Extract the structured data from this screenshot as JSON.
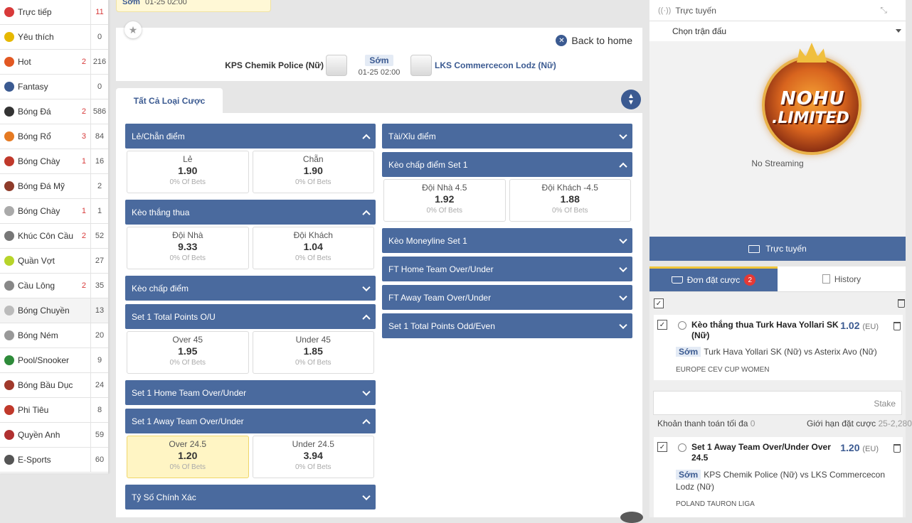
{
  "sidebar": {
    "items": [
      {
        "label": "Trực tiếp",
        "live": "",
        "count": "11",
        "count_red": true,
        "color": "#d83a3a"
      },
      {
        "label": "Yêu thích",
        "live": "",
        "count": "0",
        "count_red": false,
        "color": "#e6b800"
      },
      {
        "label": "Hot",
        "live": "2",
        "count": "216",
        "count_red": false,
        "color": "#e25822"
      },
      {
        "label": "Fantasy",
        "live": "",
        "count": "0",
        "count_red": false,
        "color": "#3b5a91"
      },
      {
        "label": "Bóng Đá",
        "live": "2",
        "count": "586",
        "count_red": false,
        "color": "#333333"
      },
      {
        "label": "Bóng Rổ",
        "live": "3",
        "count": "84",
        "count_red": false,
        "color": "#e57a22"
      },
      {
        "label": "Bóng Chày",
        "live": "1",
        "count": "16",
        "count_red": false,
        "color": "#c0392b"
      },
      {
        "label": "Bóng Đá Mỹ",
        "live": "",
        "count": "2",
        "count_red": false,
        "color": "#8e3b2a"
      },
      {
        "label": "Bóng Chày",
        "live": "1",
        "count": "1",
        "count_red": false,
        "color": "#aaaaaa"
      },
      {
        "label": "Khúc Côn Cầu",
        "live": "2",
        "count": "52",
        "count_red": false,
        "color": "#777777"
      },
      {
        "label": "Quần Vợt",
        "live": "",
        "count": "27",
        "count_red": false,
        "color": "#b7d42a"
      },
      {
        "label": "Cầu Lông",
        "live": "2",
        "count": "35",
        "count_red": false,
        "color": "#888888"
      },
      {
        "label": "Bóng Chuyền",
        "live": "",
        "count": "13",
        "count_red": false,
        "color": "#bbbbbb"
      },
      {
        "label": "Bóng Ném",
        "live": "",
        "count": "20",
        "count_red": false,
        "color": "#999999"
      },
      {
        "label": "Pool/Snooker",
        "live": "",
        "count": "9",
        "count_red": false,
        "color": "#2e8b3a"
      },
      {
        "label": "Bóng Bầu Dục",
        "live": "",
        "count": "24",
        "count_red": false,
        "color": "#a0392b"
      },
      {
        "label": "Phi Tiêu",
        "live": "",
        "count": "8",
        "count_red": false,
        "color": "#c0392b"
      },
      {
        "label": "Quyền Anh",
        "live": "",
        "count": "59",
        "count_red": false,
        "color": "#b03030"
      },
      {
        "label": "E-Sports",
        "live": "",
        "count": "60",
        "count_red": false,
        "color": "#555555"
      }
    ],
    "active_index": 12
  },
  "top_strip": {
    "status": "Sớm",
    "time": "01-25 02:00"
  },
  "match": {
    "home": "KPS Chemik Police (Nữ)",
    "away": "LKS Commercecon Lodz (Nữ)",
    "status": "Sớm",
    "time": "01-25 02:00",
    "back_label": "Back to home"
  },
  "bet_tab": "Tất Cả Loại Cược",
  "markets_left": [
    {
      "title": "Lẻ/Chẵn điểm",
      "open": true,
      "odds": [
        {
          "name": "Lẻ",
          "value": "1.90",
          "pct": "0% Of Bets",
          "selected": false
        },
        {
          "name": "Chẵn",
          "value": "1.90",
          "pct": "0% Of Bets",
          "selected": false
        }
      ]
    },
    {
      "title": "Kèo thắng thua",
      "open": true,
      "odds": [
        {
          "name": "Đội Nhà",
          "value": "9.33",
          "pct": "0% Of Bets",
          "selected": false
        },
        {
          "name": "Đội Khách",
          "value": "1.04",
          "pct": "0% Of Bets",
          "selected": false
        }
      ]
    },
    {
      "title": "Kèo chấp điểm",
      "open": false,
      "odds": []
    },
    {
      "title": "Set 1 Total Points O/U",
      "open": true,
      "odds": [
        {
          "name": "Over 45",
          "value": "1.95",
          "pct": "0% Of Bets",
          "selected": false
        },
        {
          "name": "Under 45",
          "value": "1.85",
          "pct": "0% Of Bets",
          "selected": false
        }
      ]
    },
    {
      "title": "Set 1 Home Team Over/Under",
      "open": false,
      "odds": []
    },
    {
      "title": "Set 1 Away Team Over/Under",
      "open": true,
      "odds": [
        {
          "name": "Over 24.5",
          "value": "1.20",
          "pct": "0% Of Bets",
          "selected": true
        },
        {
          "name": "Under 24.5",
          "value": "3.94",
          "pct": "0% Of Bets",
          "selected": false
        }
      ]
    },
    {
      "title": "Tỷ Số Chính Xác",
      "open": false,
      "odds": []
    }
  ],
  "markets_right": [
    {
      "title": "Tài/Xỉu điểm",
      "open": false,
      "odds": []
    },
    {
      "title": "Kèo chấp điểm Set 1",
      "open": true,
      "odds": [
        {
          "name": "Đội Nhà 4.5",
          "value": "1.92",
          "pct": "0% Of Bets",
          "selected": false
        },
        {
          "name": "Đội Khách -4.5",
          "value": "1.88",
          "pct": "0% Of Bets",
          "selected": false
        }
      ]
    },
    {
      "title": "Kèo Moneyline Set 1",
      "open": false,
      "odds": []
    },
    {
      "title": "FT Home Team Over/Under",
      "open": false,
      "odds": []
    },
    {
      "title": "FT Away Team Over/Under",
      "open": false,
      "odds": []
    },
    {
      "title": "Set 1 Total Points Odd/Even",
      "open": false,
      "odds": []
    }
  ],
  "stream": {
    "header": "Trực tuyến",
    "match_select": "Chọn trận đấu",
    "logo_line1": "NOHU",
    "logo_line2": ".LIMITED",
    "no_streaming": "No Streaming",
    "live_button": "Trực tuyến"
  },
  "slip": {
    "tab_bets": "Đơn đặt cược",
    "bets_count": "2",
    "tab_history": "History",
    "stake_placeholder": "Stake",
    "max_payout_label": "Khoản thanh toán tối đa",
    "max_payout_value": "0",
    "bet_limit_label": "Giới hạn đặt cược",
    "bet_limit_value": "25-2,280",
    "bets": [
      {
        "title": "Kèo thắng thua Turk Hava Yollari SK (Nữ)",
        "price": "1.02",
        "fmt": "(EU)",
        "status": "Sớm",
        "teams": "Turk Hava Yollari SK (Nữ) vs Asterix Avo (Nữ)",
        "league": "EUROPE CEV CUP WOMEN"
      },
      {
        "title": "Set 1 Away Team Over/Under Over 24.5",
        "price": "1.20",
        "fmt": "(EU)",
        "status": "Sớm",
        "teams": "KPS Chemik Police (Nữ) vs LKS Commercecon Lodz (Nữ)",
        "league": "POLAND TAURON LIGA"
      }
    ]
  }
}
